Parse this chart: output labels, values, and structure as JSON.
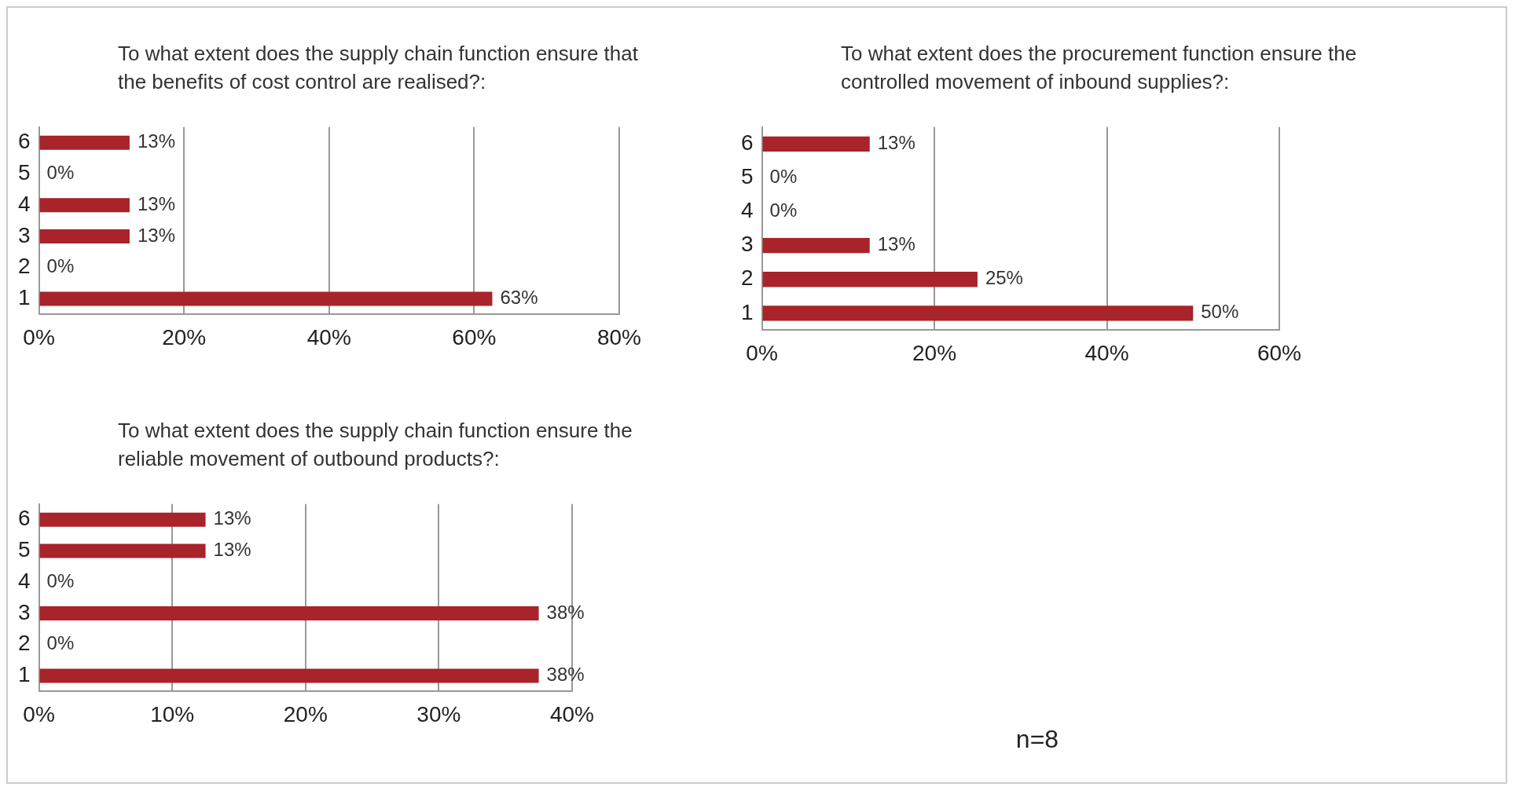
{
  "chart_data": [
    {
      "type": "bar",
      "orientation": "horizontal",
      "title": "To what extent does the supply chain function ensure that the benefits of cost control are realised?:",
      "categories": [
        "6",
        "5",
        "4",
        "3",
        "2",
        "1"
      ],
      "series": [
        {
          "color": "#a8232a",
          "values": [
            12.5,
            0,
            12.5,
            12.5,
            0,
            62.5
          ],
          "value_labels": [
            "13%",
            "0%",
            "13%",
            "13%",
            "0%",
            "63%"
          ]
        }
      ],
      "xlim": [
        0,
        80
      ],
      "xticks": [
        {
          "value": 0,
          "label": "0%"
        },
        {
          "value": 20,
          "label": "20%"
        },
        {
          "value": 40,
          "label": "40%"
        },
        {
          "value": 60,
          "label": "60%"
        },
        {
          "value": 80,
          "label": "80%"
        }
      ],
      "grid": "x",
      "legend": false
    },
    {
      "type": "bar",
      "orientation": "horizontal",
      "title": "To what extent does the procurement function ensure the controlled movement of inbound supplies?:",
      "categories": [
        "6",
        "5",
        "4",
        "3",
        "2",
        "1"
      ],
      "series": [
        {
          "color": "#a8232a",
          "values": [
            12.5,
            0,
            0,
            12.5,
            25,
            50
          ],
          "value_labels": [
            "13%",
            "0%",
            "0%",
            "13%",
            "25%",
            "50%"
          ]
        }
      ],
      "xlim": [
        0,
        60
      ],
      "xticks": [
        {
          "value": 0,
          "label": "0%"
        },
        {
          "value": 20,
          "label": "20%"
        },
        {
          "value": 40,
          "label": "40%"
        },
        {
          "value": 60,
          "label": "60%"
        }
      ],
      "grid": "x",
      "legend": false
    },
    {
      "type": "bar",
      "orientation": "horizontal",
      "title": "To what extent does the supply chain function ensure the reliable movement of outbound products?:",
      "categories": [
        "6",
        "5",
        "4",
        "3",
        "2",
        "1"
      ],
      "series": [
        {
          "color": "#a8232a",
          "values": [
            12.5,
            12.5,
            0,
            37.5,
            0,
            37.5
          ],
          "value_labels": [
            "13%",
            "13%",
            "0%",
            "38%",
            "0%",
            "38%"
          ]
        }
      ],
      "xlim": [
        0,
        40
      ],
      "xticks": [
        {
          "value": 0,
          "label": "0%"
        },
        {
          "value": 10,
          "label": "10%"
        },
        {
          "value": 20,
          "label": "20%"
        },
        {
          "value": 30,
          "label": "30%"
        },
        {
          "value": 40,
          "label": "40%"
        }
      ],
      "grid": "x",
      "legend": false
    },
    {
      "type": "other",
      "annotations": [
        "n=8"
      ]
    }
  ]
}
